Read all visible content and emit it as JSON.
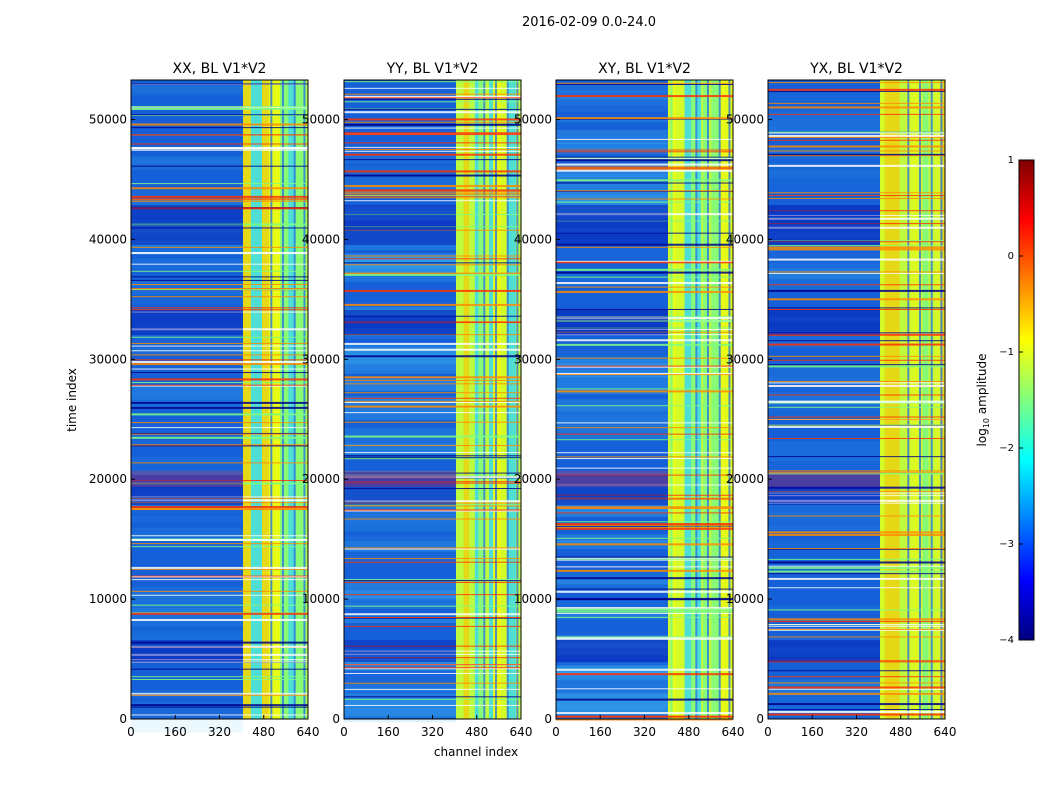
{
  "figure_title": "2016-02-09 0.0-24.0",
  "chart_data": [
    {
      "type": "heatmap",
      "title": "XX, BL V1*V2",
      "xlabel": "channel index",
      "ylabel": "time index",
      "xlim": [
        0,
        640
      ],
      "ylim": [
        0,
        53300
      ],
      "xticks": [
        0,
        160,
        320,
        480,
        640
      ],
      "yticks": [
        0,
        10000,
        20000,
        30000,
        40000,
        50000
      ],
      "bright_channel_band": [
        405,
        640
      ]
    },
    {
      "type": "heatmap",
      "title": "YY, BL V1*V2",
      "xlabel": "channel index",
      "ylabel": "",
      "xlim": [
        0,
        640
      ],
      "ylim": [
        0,
        53300
      ],
      "xticks": [
        0,
        160,
        320,
        480,
        640
      ],
      "yticks": [
        0,
        10000,
        20000,
        30000,
        40000,
        50000
      ],
      "bright_channel_band": [
        405,
        640
      ]
    },
    {
      "type": "heatmap",
      "title": "XY, BL V1*V2",
      "xlabel": "",
      "ylabel": "",
      "xlim": [
        0,
        640
      ],
      "ylim": [
        0,
        53300
      ],
      "xticks": [
        0,
        160,
        320,
        480,
        640
      ],
      "yticks": [
        0,
        10000,
        20000,
        30000,
        40000,
        50000
      ],
      "bright_channel_band": [
        405,
        640
      ]
    },
    {
      "type": "heatmap",
      "title": "YX, BL V1*V2",
      "xlabel": "",
      "ylabel": "",
      "xlim": [
        0,
        640
      ],
      "ylim": [
        0,
        53300
      ],
      "xticks": [
        0,
        160,
        320,
        480,
        640
      ],
      "yticks": [
        0,
        10000,
        20000,
        30000,
        40000,
        50000
      ],
      "bright_channel_band": [
        405,
        640
      ]
    }
  ],
  "colorbar": {
    "label_prefix": "log",
    "label_sub": "10",
    "label_suffix": " amplitude",
    "range": [
      -4,
      1
    ],
    "ticks": [
      1,
      0,
      -1,
      -2,
      -3,
      -4
    ],
    "tick_labels": [
      "1",
      "0",
      "−1",
      "−2",
      "−3",
      "−4"
    ],
    "colormap": [
      "#00007f",
      "#0000ff",
      "#007fff",
      "#00ffff",
      "#7fff7f",
      "#ffff00",
      "#ff7f00",
      "#ff0000",
      "#7f0000"
    ]
  },
  "colors": {
    "background": "#1560d8",
    "band_base": "#9ef05a"
  }
}
